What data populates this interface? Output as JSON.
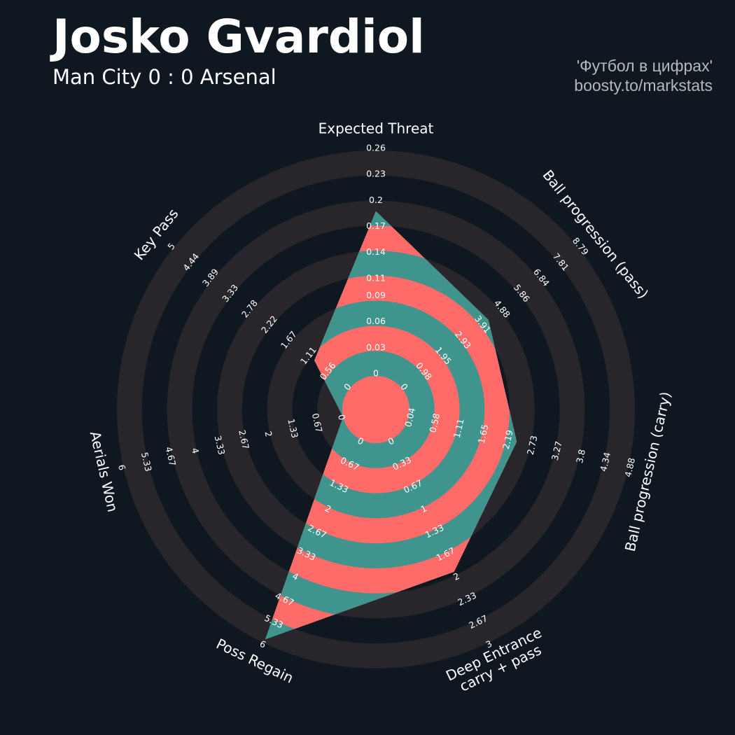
{
  "chart_data": {
    "type": "radar",
    "title": "Josko Gvardiol",
    "subtitle": "Man City 0 : 0 Arsenal",
    "credits": [
      "'Футбол в цифрах'",
      "boosty.to/markstats"
    ],
    "categories": [
      "Expected Threat",
      "Ball progression (pass)",
      "Ball progression (carry)",
      "Deep Entrance\ncarry + pass",
      "Poss Regain",
      "Aerials Won",
      "Key Pass"
    ],
    "values": [
      0.19,
      4.3,
      2.42,
      1.95,
      5.9,
      0.0,
      1.0
    ],
    "axes": [
      {
        "range": [
          0.0,
          0.26
        ],
        "ticks": [
          0.0,
          0.03,
          0.06,
          0.09,
          0.11,
          0.14,
          0.17,
          0.2,
          0.23,
          0.26
        ]
      },
      {
        "range": [
          0.0,
          8.79
        ],
        "ticks": [
          0.0,
          0.98,
          1.95,
          2.93,
          3.91,
          4.88,
          5.86,
          6.84,
          7.81,
          8.79
        ]
      },
      {
        "range": [
          0.04,
          4.88
        ],
        "ticks": [
          0.04,
          0.58,
          1.11,
          1.65,
          2.19,
          2.73,
          3.27,
          3.8,
          4.34,
          4.88
        ]
      },
      {
        "range": [
          0.0,
          3.0
        ],
        "ticks": [
          0.0,
          0.33,
          0.67,
          1.0,
          1.33,
          1.67,
          2.0,
          2.33,
          2.67,
          3.0
        ]
      },
      {
        "range": [
          0.0,
          6.0
        ],
        "ticks": [
          0.0,
          0.67,
          1.33,
          2.0,
          2.67,
          3.33,
          4.0,
          4.67,
          5.33,
          6.0
        ]
      },
      {
        "range": [
          0.0,
          6.0
        ],
        "ticks": [
          0.0,
          0.67,
          1.33,
          2.0,
          2.67,
          3.33,
          4.0,
          4.67,
          5.33,
          6.0
        ]
      },
      {
        "range": [
          0.0,
          5.0
        ],
        "ticks": [
          0.0,
          0.56,
          1.11,
          1.67,
          2.22,
          2.78,
          3.33,
          3.89,
          4.44,
          5.0
        ]
      }
    ],
    "colors": {
      "background": "#0f1820",
      "rings": "#28252b",
      "radar": "#3f958d",
      "radar_alt": "#ff6b68"
    }
  }
}
